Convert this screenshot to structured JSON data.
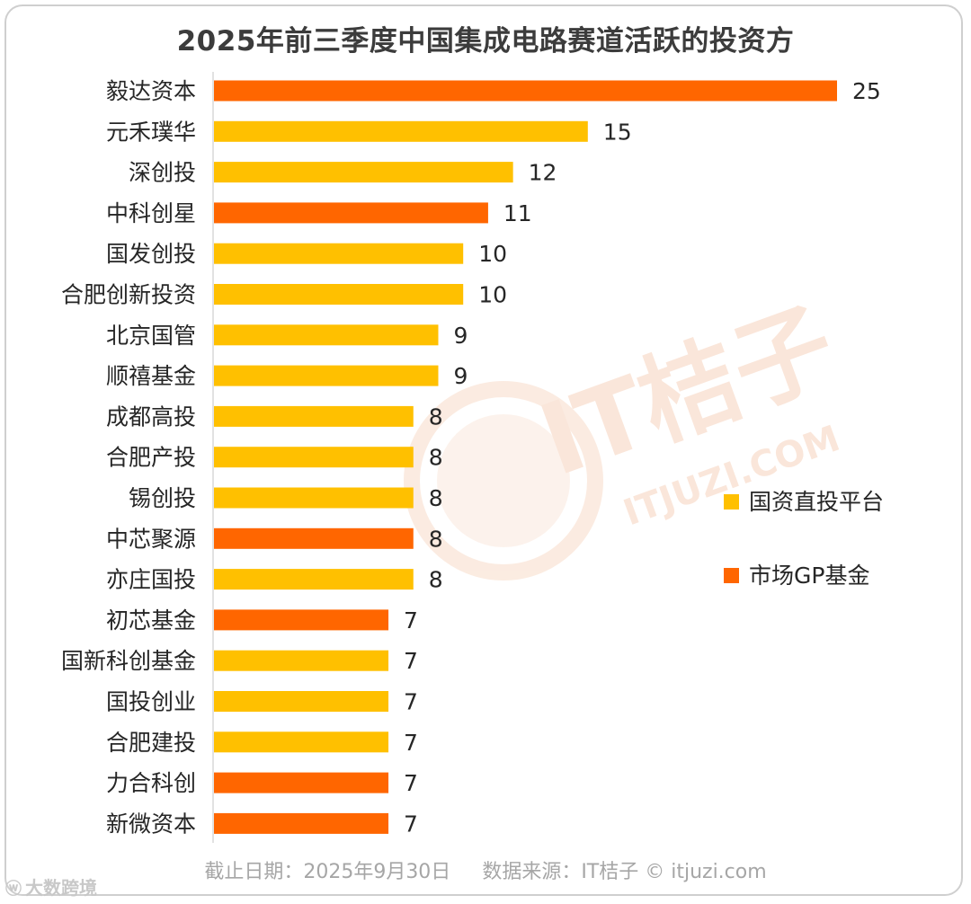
{
  "chart_data": {
    "type": "bar",
    "orientation": "horizontal",
    "title": "2025年前三季度中国集成电路赛道活跃的投资方",
    "categories": [
      "毅达资本",
      "元禾璞华",
      "深创投",
      "中科创星",
      "国发创投",
      "合肥创新投资",
      "北京国管",
      "顺禧基金",
      "成都高投",
      "合肥产投",
      "锡创投",
      "中芯聚源",
      "亦庄国投",
      "初芯基金",
      "国新科创基金",
      "国投创业",
      "合肥建投",
      "力合科创",
      "新微资本"
    ],
    "values": [
      25,
      15,
      12,
      11,
      10,
      10,
      9,
      9,
      8,
      8,
      8,
      8,
      8,
      7,
      7,
      7,
      7,
      7,
      7
    ],
    "groups": [
      "市场GP基金",
      "国资直投平台",
      "国资直投平台",
      "市场GP基金",
      "国资直投平台",
      "国资直投平台",
      "国资直投平台",
      "国资直投平台",
      "国资直投平台",
      "国资直投平台",
      "国资直投平台",
      "市场GP基金",
      "国资直投平台",
      "市场GP基金",
      "国资直投平台",
      "国资直投平台",
      "国资直投平台",
      "市场GP基金",
      "市场GP基金"
    ],
    "legend": [
      {
        "name": "国资直投平台",
        "color": "#FFC000"
      },
      {
        "name": "市场GP基金",
        "color": "#FF6600"
      }
    ],
    "legend_position": "right",
    "xlim": [
      0,
      25
    ],
    "grid": false
  },
  "watermark": {
    "brand": "IT桔子",
    "domain": "ITJUZI.COM",
    "color": "#F5D3BE"
  },
  "footer": {
    "date_text": "截止日期：2025年9月30日",
    "source_text": "数据来源：IT桔子 © itjuzi.com"
  },
  "corner_mark": {
    "icon": "weibo-icon",
    "glyph": "ⓦ",
    "text": "大数跨境"
  }
}
